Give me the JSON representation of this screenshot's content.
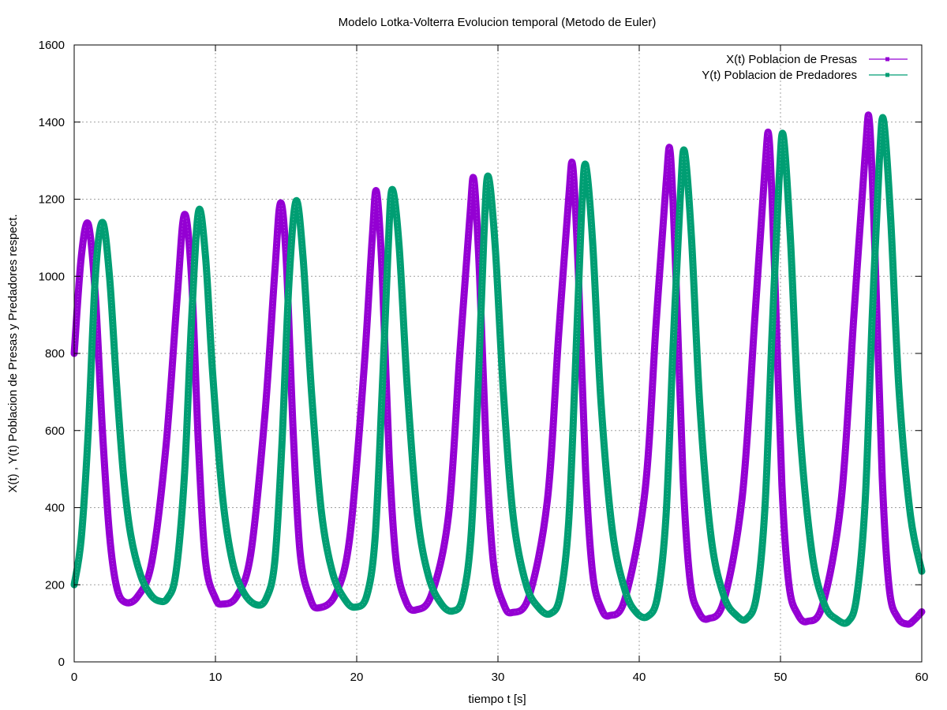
{
  "chart_data": {
    "type": "line",
    "title": "Modelo Lotka-Volterra Evolucion temporal (Metodo de Euler)",
    "xlabel": "tiempo t [s]",
    "ylabel": "X(t) , Y(t) Poblacion de Presas y Predadores respect.",
    "xlim": [
      0,
      60
    ],
    "ylim": [
      0,
      1600
    ],
    "xticks": [
      0,
      10,
      20,
      30,
      40,
      50,
      60
    ],
    "yticks": [
      0,
      200,
      400,
      600,
      800,
      1000,
      1200,
      1400,
      1600
    ],
    "grid": true,
    "legend_position": "top-right",
    "series": [
      {
        "name": "X(t) Poblacion de Presas",
        "color": "#9400d3",
        "points": [
          [
            0.0,
            800
          ],
          [
            0.5,
            1050
          ],
          [
            1.0,
            1135
          ],
          [
            1.5,
            950
          ],
          [
            2.0,
            600
          ],
          [
            2.5,
            330
          ],
          [
            3.0,
            195
          ],
          [
            3.6,
            155
          ],
          [
            4.5,
            170
          ],
          [
            5.5,
            260
          ],
          [
            6.5,
            560
          ],
          [
            7.3,
            950
          ],
          [
            7.8,
            1160
          ],
          [
            8.3,
            1000
          ],
          [
            8.8,
            560
          ],
          [
            9.3,
            260
          ],
          [
            10.0,
            165
          ],
          [
            10.5,
            150
          ],
          [
            11.5,
            170
          ],
          [
            12.5,
            280
          ],
          [
            13.5,
            640
          ],
          [
            14.2,
            1010
          ],
          [
            14.6,
            1190
          ],
          [
            15.0,
            1050
          ],
          [
            15.5,
            600
          ],
          [
            16.0,
            280
          ],
          [
            16.7,
            165
          ],
          [
            17.3,
            140
          ],
          [
            18.5,
            175
          ],
          [
            19.5,
            320
          ],
          [
            20.5,
            750
          ],
          [
            21.1,
            1100
          ],
          [
            21.4,
            1220
          ],
          [
            21.8,
            1010
          ],
          [
            22.3,
            530
          ],
          [
            22.8,
            260
          ],
          [
            23.5,
            155
          ],
          [
            24.2,
            135
          ],
          [
            25.3,
            175
          ],
          [
            26.5,
            380
          ],
          [
            27.3,
            800
          ],
          [
            28.0,
            1150
          ],
          [
            28.3,
            1250
          ],
          [
            28.7,
            1000
          ],
          [
            29.2,
            520
          ],
          [
            29.7,
            250
          ],
          [
            30.4,
            150
          ],
          [
            31.0,
            128
          ],
          [
            32.2,
            170
          ],
          [
            33.5,
            420
          ],
          [
            34.3,
            850
          ],
          [
            35.0,
            1200
          ],
          [
            35.3,
            1285
          ],
          [
            35.7,
            1000
          ],
          [
            36.2,
            500
          ],
          [
            36.7,
            230
          ],
          [
            37.3,
            140
          ],
          [
            37.9,
            120
          ],
          [
            39.0,
            165
          ],
          [
            40.4,
            440
          ],
          [
            41.2,
            880
          ],
          [
            41.9,
            1240
          ],
          [
            42.2,
            1320
          ],
          [
            42.6,
            1000
          ],
          [
            43.1,
            480
          ],
          [
            43.6,
            210
          ],
          [
            44.2,
            130
          ],
          [
            44.9,
            112
          ],
          [
            46.0,
            160
          ],
          [
            47.3,
            430
          ],
          [
            48.2,
            900
          ],
          [
            48.9,
            1280
          ],
          [
            49.2,
            1355
          ],
          [
            49.6,
            1000
          ],
          [
            50.1,
            460
          ],
          [
            50.6,
            200
          ],
          [
            51.2,
            125
          ],
          [
            51.9,
            105
          ],
          [
            53.0,
            150
          ],
          [
            54.3,
            420
          ],
          [
            55.2,
            900
          ],
          [
            56.0,
            1320
          ],
          [
            56.3,
            1400
          ],
          [
            56.7,
            1050
          ],
          [
            57.2,
            480
          ],
          [
            57.7,
            190
          ],
          [
            58.3,
            115
          ],
          [
            59.0,
            98
          ],
          [
            59.5,
            110
          ],
          [
            60.0,
            130
          ]
        ]
      },
      {
        "name": "Y(t) Poblacion de Predadores",
        "color": "#009e73",
        "points": [
          [
            0.0,
            200
          ],
          [
            0.5,
            320
          ],
          [
            1.0,
            600
          ],
          [
            1.5,
            1000
          ],
          [
            2.0,
            1140
          ],
          [
            2.5,
            1000
          ],
          [
            3.0,
            720
          ],
          [
            3.5,
            480
          ],
          [
            4.0,
            330
          ],
          [
            4.7,
            225
          ],
          [
            5.4,
            175
          ],
          [
            6.0,
            158
          ],
          [
            6.6,
            165
          ],
          [
            7.2,
            230
          ],
          [
            7.8,
            480
          ],
          [
            8.3,
            880
          ],
          [
            8.8,
            1168
          ],
          [
            9.3,
            1050
          ],
          [
            9.8,
            750
          ],
          [
            10.5,
            430
          ],
          [
            11.2,
            260
          ],
          [
            12.0,
            180
          ],
          [
            12.9,
            148
          ],
          [
            13.6,
            165
          ],
          [
            14.2,
            260
          ],
          [
            14.7,
            560
          ],
          [
            15.2,
            980
          ],
          [
            15.7,
            1195
          ],
          [
            16.2,
            1050
          ],
          [
            16.8,
            700
          ],
          [
            17.5,
            390
          ],
          [
            18.3,
            230
          ],
          [
            19.2,
            160
          ],
          [
            19.9,
            142
          ],
          [
            20.7,
            170
          ],
          [
            21.3,
            320
          ],
          [
            21.8,
            700
          ],
          [
            22.2,
            1050
          ],
          [
            22.5,
            1225
          ],
          [
            23.0,
            1080
          ],
          [
            23.6,
            700
          ],
          [
            24.3,
            380
          ],
          [
            25.1,
            220
          ],
          [
            26.0,
            150
          ],
          [
            26.8,
            132
          ],
          [
            27.5,
            165
          ],
          [
            28.1,
            330
          ],
          [
            28.6,
            720
          ],
          [
            29.0,
            1100
          ],
          [
            29.3,
            1260
          ],
          [
            29.8,
            1080
          ],
          [
            30.4,
            690
          ],
          [
            31.1,
            370
          ],
          [
            32.0,
            200
          ],
          [
            32.9,
            140
          ],
          [
            33.7,
            125
          ],
          [
            34.4,
            170
          ],
          [
            35.0,
            360
          ],
          [
            35.5,
            780
          ],
          [
            35.9,
            1150
          ],
          [
            36.2,
            1290
          ],
          [
            36.7,
            1090
          ],
          [
            37.3,
            670
          ],
          [
            38.1,
            340
          ],
          [
            39.0,
            185
          ],
          [
            39.8,
            128
          ],
          [
            40.6,
            118
          ],
          [
            41.3,
            170
          ],
          [
            41.9,
            380
          ],
          [
            42.4,
            820
          ],
          [
            42.9,
            1200
          ],
          [
            43.2,
            1325
          ],
          [
            43.7,
            1100
          ],
          [
            44.3,
            660
          ],
          [
            45.1,
            320
          ],
          [
            46.0,
            170
          ],
          [
            46.9,
            120
          ],
          [
            47.6,
            112
          ],
          [
            48.3,
            170
          ],
          [
            48.9,
            400
          ],
          [
            49.4,
            850
          ],
          [
            49.9,
            1250
          ],
          [
            50.2,
            1365
          ],
          [
            50.7,
            1100
          ],
          [
            51.3,
            640
          ],
          [
            52.2,
            290
          ],
          [
            53.1,
            150
          ],
          [
            54.0,
            110
          ],
          [
            54.8,
            105
          ],
          [
            55.4,
            170
          ],
          [
            56.0,
            420
          ],
          [
            56.5,
            900
          ],
          [
            57.0,
            1300
          ],
          [
            57.3,
            1405
          ],
          [
            57.8,
            1150
          ],
          [
            58.4,
            700
          ],
          [
            59.2,
            380
          ],
          [
            60.0,
            235
          ]
        ]
      }
    ]
  }
}
